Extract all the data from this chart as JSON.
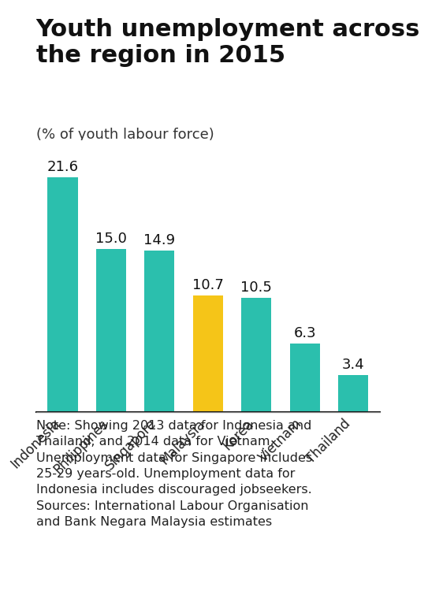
{
  "title": "Youth unemployment across\nthe region in 2015",
  "subtitle": "(% of youth labour force)",
  "categories": [
    "Indonesia",
    "Philippines",
    "Singapore",
    "Malaysia",
    "Korea",
    "Vietnam",
    "Thailand"
  ],
  "values": [
    21.6,
    15.0,
    14.9,
    10.7,
    10.5,
    6.3,
    3.4
  ],
  "bar_colors": [
    "#2bbfad",
    "#2bbfad",
    "#2bbfad",
    "#f5c518",
    "#2bbfad",
    "#2bbfad",
    "#2bbfad"
  ],
  "note_text": "Note: Showing 2013 data for Indonesia and\nThailand, and 2014 data for Vietnam.\nUnemployment data for Singapore includes\n25-29 years-old. Unemployment data for\nIndonesia includes discouraged jobseekers.\nSources: International Labour Organisation\nand Bank Negara Malaysia estimates",
  "bg_color": "#ffffff",
  "title_fontsize": 22,
  "subtitle_fontsize": 13,
  "label_fontsize": 13,
  "tick_fontsize": 12,
  "note_fontsize": 11.5,
  "ylim": [
    0,
    25
  ]
}
